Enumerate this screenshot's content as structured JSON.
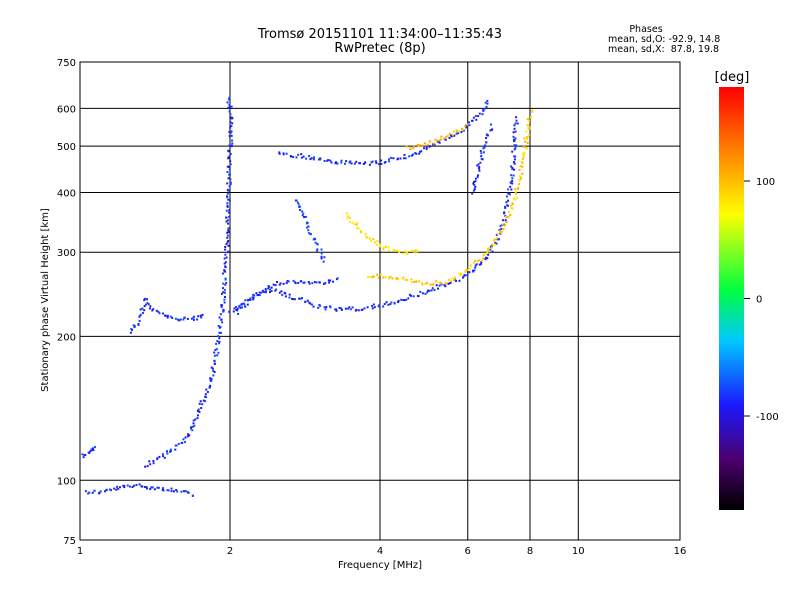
{
  "chart_data": {
    "type": "scatter",
    "title": "Tromsø 20151101 11:34:00–11:35:43",
    "subtitle": "RwPretec (8p)",
    "xlabel": "Frequency [MHz]",
    "ylabel": "Stationary phase Virtual Height [km]",
    "x_scale": "log2",
    "y_scale": "log",
    "xlim": [
      1,
      16
    ],
    "ylim": [
      75,
      750
    ],
    "x_ticks": [
      1,
      2,
      4,
      6,
      8,
      10,
      16
    ],
    "y_ticks": [
      75,
      100,
      200,
      300,
      400,
      500,
      600,
      750
    ],
    "grid": true,
    "info_box": {
      "heading": "Phases",
      "line_o": "mean, sd,O: -92.9, 14.8",
      "line_x": "mean, sd,X:  87.8, 19.8"
    },
    "colorbar": {
      "label": "[deg]",
      "ticks": [
        -100,
        0,
        100
      ],
      "range": [
        -180,
        180
      ],
      "colormap": "rainbow-black-to-red"
    },
    "series": [
      {
        "phase": -95,
        "points": [
          [
            1.02,
            95
          ],
          [
            1.1,
            95
          ],
          [
            1.2,
            97
          ],
          [
            1.3,
            98
          ],
          [
            1.4,
            97
          ],
          [
            1.5,
            96
          ],
          [
            1.6,
            95
          ],
          [
            1.7,
            93
          ]
        ]
      },
      {
        "phase": -95,
        "points": [
          [
            1.01,
            113
          ],
          [
            1.04,
            115
          ],
          [
            1.07,
            118
          ]
        ]
      },
      {
        "phase": -95,
        "points": [
          [
            1.25,
            205
          ],
          [
            1.3,
            215
          ],
          [
            1.35,
            240
          ],
          [
            1.4,
            228
          ],
          [
            1.5,
            220
          ],
          [
            1.6,
            218
          ],
          [
            1.7,
            219
          ],
          [
            1.78,
            222
          ]
        ]
      },
      {
        "phase": -95,
        "points": [
          [
            1.35,
            108
          ],
          [
            1.45,
            112
          ],
          [
            1.55,
            118
          ],
          [
            1.65,
            125
          ],
          [
            1.72,
            140
          ],
          [
            1.8,
            155
          ],
          [
            1.86,
            180
          ],
          [
            1.9,
            210
          ],
          [
            1.93,
            240
          ],
          [
            1.95,
            280
          ],
          [
            1.97,
            330
          ],
          [
            1.98,
            400
          ],
          [
            1.99,
            480
          ],
          [
            2.0,
            560
          ],
          [
            1.98,
            640
          ]
        ]
      },
      {
        "phase": -95,
        "points": [
          [
            2.0,
            225
          ],
          [
            2.1,
            235
          ],
          [
            2.3,
            250
          ],
          [
            2.5,
            260
          ],
          [
            2.7,
            262
          ],
          [
            3.0,
            260
          ],
          [
            3.3,
            265
          ]
        ]
      },
      {
        "phase": -95,
        "points": [
          [
            2.05,
            225
          ],
          [
            2.2,
            240
          ],
          [
            2.4,
            252
          ],
          [
            2.6,
            245
          ],
          [
            2.8,
            238
          ],
          [
            3.0,
            232
          ],
          [
            3.3,
            229
          ],
          [
            3.7,
            230
          ],
          [
            4.2,
            236
          ],
          [
            4.8,
            247
          ],
          [
            5.4,
            258
          ],
          [
            6.0,
            270
          ],
          [
            6.4,
            288
          ],
          [
            6.8,
            315
          ],
          [
            7.1,
            360
          ],
          [
            7.3,
            420
          ],
          [
            7.4,
            500
          ],
          [
            7.5,
            580
          ]
        ]
      },
      {
        "phase": -95,
        "points": [
          [
            2.5,
            485
          ],
          [
            2.8,
            478
          ],
          [
            3.1,
            468
          ],
          [
            3.5,
            462
          ],
          [
            4.0,
            465
          ],
          [
            4.5,
            478
          ],
          [
            5.0,
            498
          ],
          [
            5.5,
            525
          ],
          [
            6.0,
            555
          ],
          [
            6.4,
            595
          ],
          [
            6.6,
            630
          ]
        ]
      },
      {
        "phase": -90,
        "points": [
          [
            2.7,
            390
          ],
          [
            2.8,
            360
          ],
          [
            2.9,
            330
          ],
          [
            3.0,
            305
          ],
          [
            3.1,
            288
          ]
        ]
      },
      {
        "phase": -95,
        "points": [
          [
            6.1,
            400
          ],
          [
            6.3,
            460
          ],
          [
            6.5,
            520
          ],
          [
            6.7,
            560
          ]
        ]
      },
      {
        "phase": 100,
        "points": [
          [
            3.8,
            270
          ],
          [
            4.2,
            268
          ],
          [
            4.6,
            262
          ],
          [
            5.0,
            258
          ],
          [
            5.4,
            262
          ],
          [
            5.8,
            272
          ],
          [
            6.3,
            290
          ],
          [
            6.8,
            320
          ],
          [
            7.3,
            370
          ],
          [
            7.6,
            430
          ],
          [
            7.8,
            500
          ],
          [
            7.9,
            560
          ],
          [
            8.0,
            600
          ]
        ]
      },
      {
        "phase": 110,
        "points": [
          [
            4.5,
            498
          ],
          [
            5.0,
            510
          ],
          [
            5.5,
            530
          ],
          [
            6.0,
            555
          ]
        ]
      },
      {
        "phase": 90,
        "points": [
          [
            3.4,
            360
          ],
          [
            3.7,
            330
          ],
          [
            4.0,
            310
          ],
          [
            4.4,
            300
          ],
          [
            4.8,
            305
          ]
        ]
      }
    ]
  }
}
